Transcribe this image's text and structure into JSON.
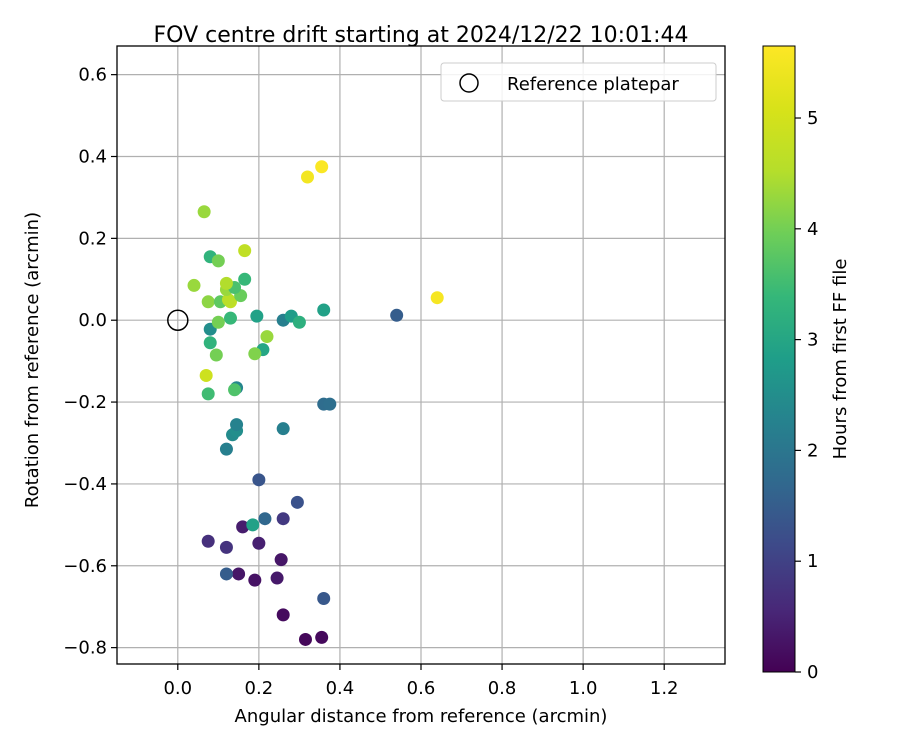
{
  "chart_data": {
    "type": "scatter",
    "title": "FOV centre drift starting at 2024/12/22 10:01:44",
    "xlabel": "Angular distance from reference (arcmin)",
    "ylabel": "Rotation from reference (arcmin)",
    "xlim": [
      -0.15,
      1.35
    ],
    "ylim": [
      -0.84,
      0.67
    ],
    "xticks": [
      0.0,
      0.2,
      0.4,
      0.6,
      0.8,
      1.0,
      1.2
    ],
    "xtick_labels": [
      "0.0",
      "0.2",
      "0.4",
      "0.6",
      "0.8",
      "1.0",
      "1.2"
    ],
    "yticks": [
      -0.8,
      -0.6,
      -0.4,
      -0.2,
      0.0,
      0.2,
      0.4,
      0.6
    ],
    "ytick_labels": [
      "−0.8",
      "−0.6",
      "−0.4",
      "−0.2",
      "0.0",
      "0.2",
      "0.4",
      "0.6"
    ],
    "grid": true,
    "legend": {
      "placement": "top-right",
      "entries": [
        "Reference platepar"
      ]
    },
    "reference_point": {
      "x": 0.0,
      "y": 0.0
    },
    "colorbar": {
      "label": "Hours from first FF file",
      "min": 0,
      "max": 5.65,
      "ticks": [
        0,
        1,
        2,
        3,
        4,
        5
      ],
      "tick_labels": [
        "0",
        "1",
        "2",
        "3",
        "4",
        "5"
      ],
      "colormap": "viridis"
    },
    "points": [
      {
        "x": 0.26,
        "y": -0.72,
        "t": 0.15
      },
      {
        "x": 0.315,
        "y": -0.78,
        "t": 0.1
      },
      {
        "x": 0.355,
        "y": -0.775,
        "t": 0.12
      },
      {
        "x": 0.15,
        "y": -0.62,
        "t": 0.3
      },
      {
        "x": 0.19,
        "y": -0.635,
        "t": 0.25
      },
      {
        "x": 0.245,
        "y": -0.63,
        "t": 0.35
      },
      {
        "x": 0.255,
        "y": -0.585,
        "t": 0.3
      },
      {
        "x": 0.2,
        "y": -0.545,
        "t": 0.45
      },
      {
        "x": 0.16,
        "y": -0.505,
        "t": 0.4
      },
      {
        "x": 0.075,
        "y": -0.54,
        "t": 0.7
      },
      {
        "x": 0.12,
        "y": -0.555,
        "t": 0.75
      },
      {
        "x": 0.26,
        "y": -0.485,
        "t": 0.85
      },
      {
        "x": 0.12,
        "y": -0.62,
        "t": 1.5
      },
      {
        "x": 0.36,
        "y": -0.68,
        "t": 1.4
      },
      {
        "x": 0.215,
        "y": -0.485,
        "t": 1.7
      },
      {
        "x": 0.295,
        "y": -0.445,
        "t": 1.3
      },
      {
        "x": 0.2,
        "y": -0.39,
        "t": 1.35
      },
      {
        "x": 0.185,
        "y": -0.5,
        "t": 2.9
      },
      {
        "x": 0.12,
        "y": -0.315,
        "t": 2.2
      },
      {
        "x": 0.135,
        "y": -0.28,
        "t": 2.45
      },
      {
        "x": 0.145,
        "y": -0.27,
        "t": 2.5
      },
      {
        "x": 0.145,
        "y": -0.255,
        "t": 2.25
      },
      {
        "x": 0.26,
        "y": -0.265,
        "t": 2.2
      },
      {
        "x": 0.36,
        "y": -0.205,
        "t": 1.8
      },
      {
        "x": 0.375,
        "y": -0.205,
        "t": 1.85
      },
      {
        "x": 0.145,
        "y": -0.165,
        "t": 2.35
      },
      {
        "x": 0.54,
        "y": 0.012,
        "t": 1.5
      },
      {
        "x": 0.075,
        "y": -0.18,
        "t": 3.5
      },
      {
        "x": 0.14,
        "y": -0.17,
        "t": 3.65
      },
      {
        "x": 0.07,
        "y": -0.135,
        "t": 4.9
      },
      {
        "x": 0.08,
        "y": -0.055,
        "t": 3.3
      },
      {
        "x": 0.095,
        "y": -0.085,
        "t": 4.0
      },
      {
        "x": 0.08,
        "y": -0.022,
        "t": 2.5
      },
      {
        "x": 0.21,
        "y": -0.072,
        "t": 3.0
      },
      {
        "x": 0.19,
        "y": -0.082,
        "t": 4.1
      },
      {
        "x": 0.22,
        "y": -0.04,
        "t": 4.3
      },
      {
        "x": 0.1,
        "y": -0.005,
        "t": 4.0
      },
      {
        "x": 0.13,
        "y": 0.005,
        "t": 3.4
      },
      {
        "x": 0.195,
        "y": 0.01,
        "t": 2.9
      },
      {
        "x": 0.26,
        "y": 0.0,
        "t": 2.2
      },
      {
        "x": 0.28,
        "y": 0.01,
        "t": 2.8
      },
      {
        "x": 0.3,
        "y": -0.005,
        "t": 3.2
      },
      {
        "x": 0.36,
        "y": 0.025,
        "t": 2.9
      },
      {
        "x": 0.075,
        "y": 0.045,
        "t": 4.2
      },
      {
        "x": 0.105,
        "y": 0.045,
        "t": 3.8
      },
      {
        "x": 0.13,
        "y": 0.045,
        "t": 4.7
      },
      {
        "x": 0.125,
        "y": 0.05,
        "t": 4.6
      },
      {
        "x": 0.155,
        "y": 0.06,
        "t": 3.9
      },
      {
        "x": 0.12,
        "y": 0.075,
        "t": 4.3
      },
      {
        "x": 0.14,
        "y": 0.08,
        "t": 3.6
      },
      {
        "x": 0.12,
        "y": 0.09,
        "t": 4.5
      },
      {
        "x": 0.04,
        "y": 0.085,
        "t": 4.3
      },
      {
        "x": 0.165,
        "y": 0.1,
        "t": 3.4
      },
      {
        "x": 0.08,
        "y": 0.155,
        "t": 3.3
      },
      {
        "x": 0.1,
        "y": 0.145,
        "t": 4.0
      },
      {
        "x": 0.065,
        "y": 0.265,
        "t": 4.3
      },
      {
        "x": 0.165,
        "y": 0.17,
        "t": 4.7
      },
      {
        "x": 0.32,
        "y": 0.35,
        "t": 5.5
      },
      {
        "x": 0.355,
        "y": 0.375,
        "t": 5.6
      },
      {
        "x": 0.64,
        "y": 0.055,
        "t": 5.55
      }
    ]
  }
}
